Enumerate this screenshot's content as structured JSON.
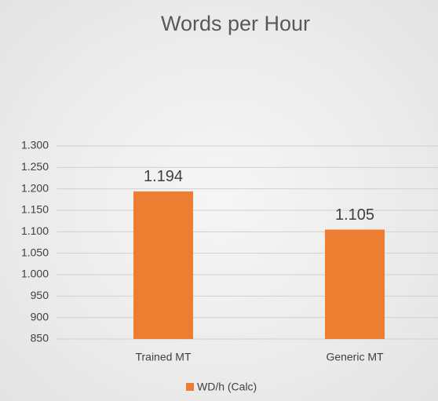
{
  "chart_data": {
    "type": "bar",
    "title": "Words per Hour",
    "categories": [
      "Trained MT",
      "Generic MT"
    ],
    "series": [
      {
        "name": "WD/h (Calc)",
        "color": "#ed7d31",
        "values": [
          1194,
          1105
        ],
        "value_labels": [
          "1.194",
          "1.105"
        ]
      }
    ],
    "ylim": [
      850,
      1300
    ],
    "yticks": [
      {
        "value": 850,
        "label": "850"
      },
      {
        "value": 900,
        "label": "900"
      },
      {
        "value": 950,
        "label": "950"
      },
      {
        "value": 1000,
        "label": "1.000"
      },
      {
        "value": 1050,
        "label": "1.050"
      },
      {
        "value": 1100,
        "label": "1.100"
      },
      {
        "value": 1150,
        "label": "1.150"
      },
      {
        "value": 1200,
        "label": "1.200"
      },
      {
        "value": 1250,
        "label": "1.250"
      },
      {
        "value": 1300,
        "label": "1.300"
      }
    ],
    "grid": true,
    "legend": "bottom"
  }
}
